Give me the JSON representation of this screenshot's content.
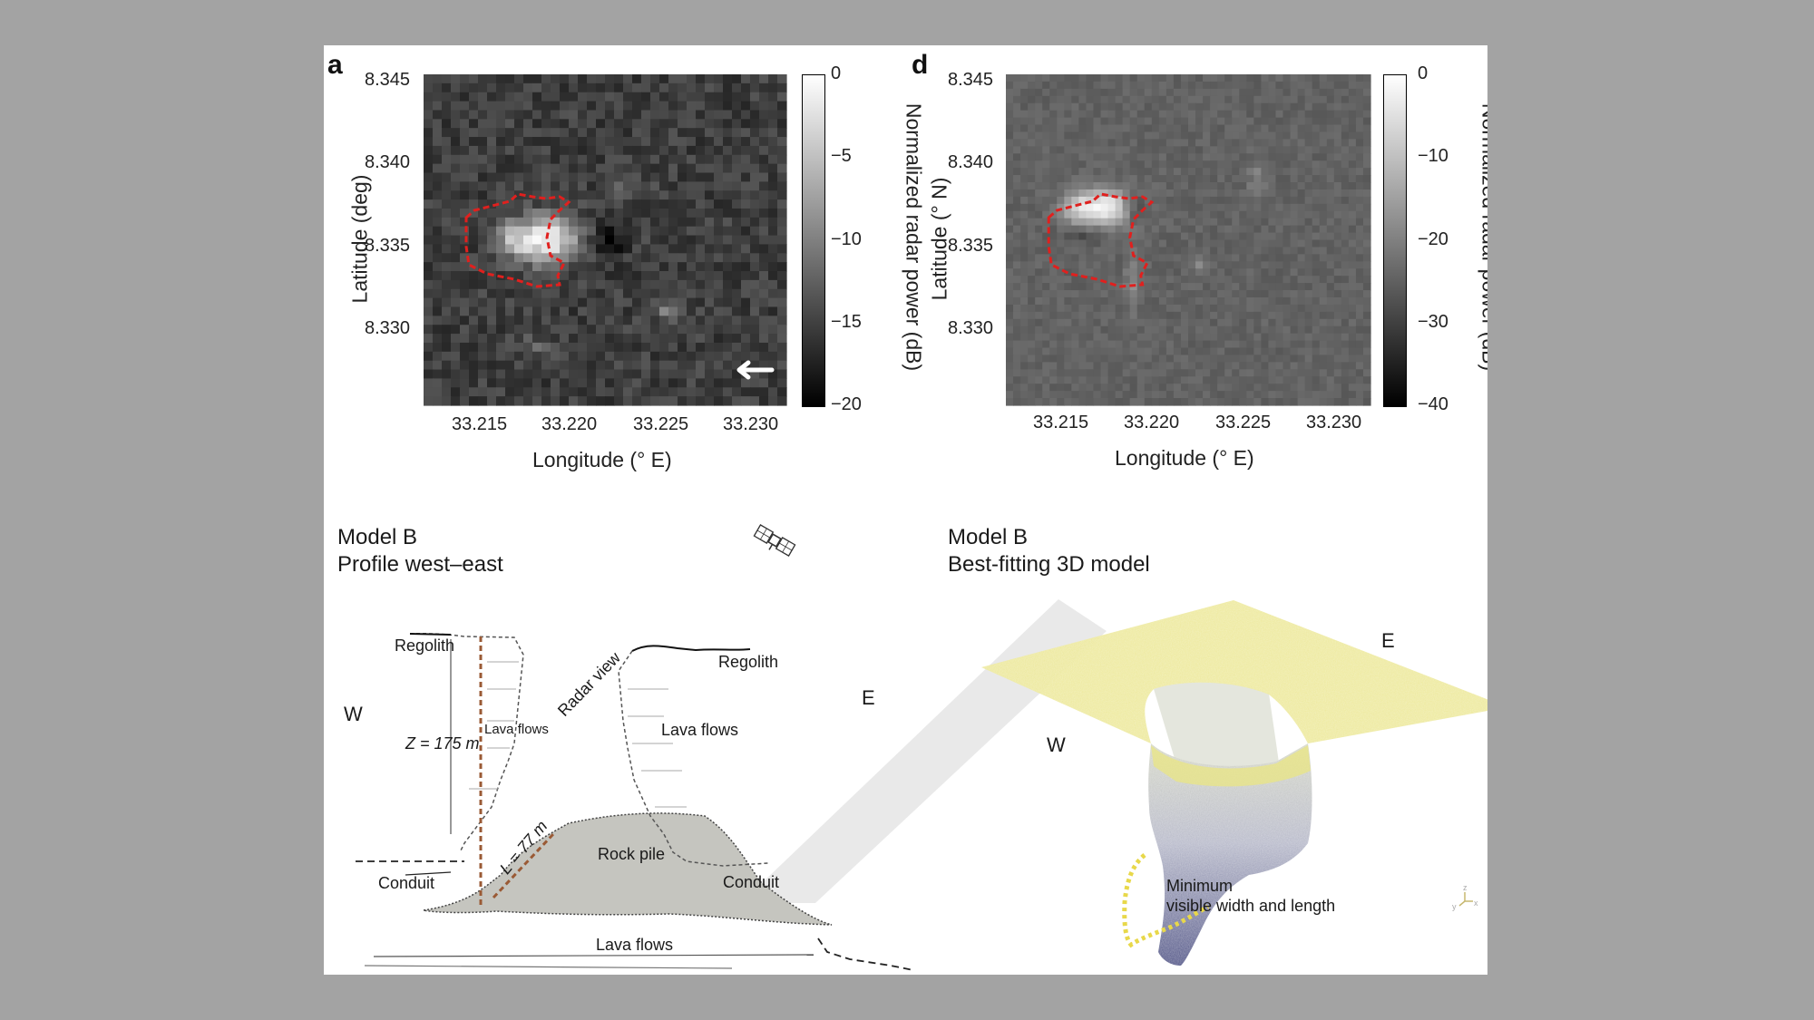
{
  "panels": {
    "a": {
      "letter": "a",
      "y_ticks": [
        "8.345",
        "8.340",
        "8.335",
        "8.330"
      ],
      "x_ticks": [
        "33.215",
        "33.220",
        "33.225",
        "33.230"
      ],
      "xlabel": "Longitude (° E)",
      "ylabel": "Latitude (deg)",
      "colorbar_label": "Normalized radar power (dB)",
      "colorbar_ticks": [
        "0",
        "−5",
        "−10",
        "−15",
        "−20"
      ],
      "colorbar_range": [
        -20,
        0
      ],
      "outline_color": "#e0201e"
    },
    "d": {
      "letter": "d",
      "y_ticks": [
        "8.345",
        "8.340",
        "8.335",
        "8.330"
      ],
      "x_ticks": [
        "33.215",
        "33.220",
        "33.225",
        "33.230"
      ],
      "xlabel": "Longitude (° E)",
      "ylabel": "Latitude (° N)",
      "colorbar_label": "Normalized radar power (dB)",
      "colorbar_ticks": [
        "0",
        "−10",
        "−20",
        "−30",
        "−40"
      ],
      "colorbar_range": [
        -40,
        0
      ],
      "outline_color": "#e0201e"
    }
  },
  "profile": {
    "title_line1": "Model B",
    "title_line2": "Profile west–east",
    "labels": {
      "regolith_left": "Regolith",
      "regolith_right": "Regolith",
      "lava_flows_left": "Lava flows",
      "lava_flows_right": "Lava flows",
      "lava_flows_bottom": "Lava flows",
      "radar_view": "Radar view",
      "z_depth": "Z = 175 m",
      "l_length": "L = 77 m",
      "rock_pile": "Rock pile",
      "conduit_left": "Conduit",
      "conduit_right": "Conduit",
      "west": "W",
      "east": "E"
    },
    "icons": [
      "satellite-icon"
    ]
  },
  "model3d": {
    "title_line1": "Model B",
    "title_line2": "Best-fitting 3D model",
    "east": "E",
    "west": "W",
    "annotation_line1": "Minimum",
    "annotation_line2": "visible width and length",
    "axes_glyph": "y x z"
  }
}
